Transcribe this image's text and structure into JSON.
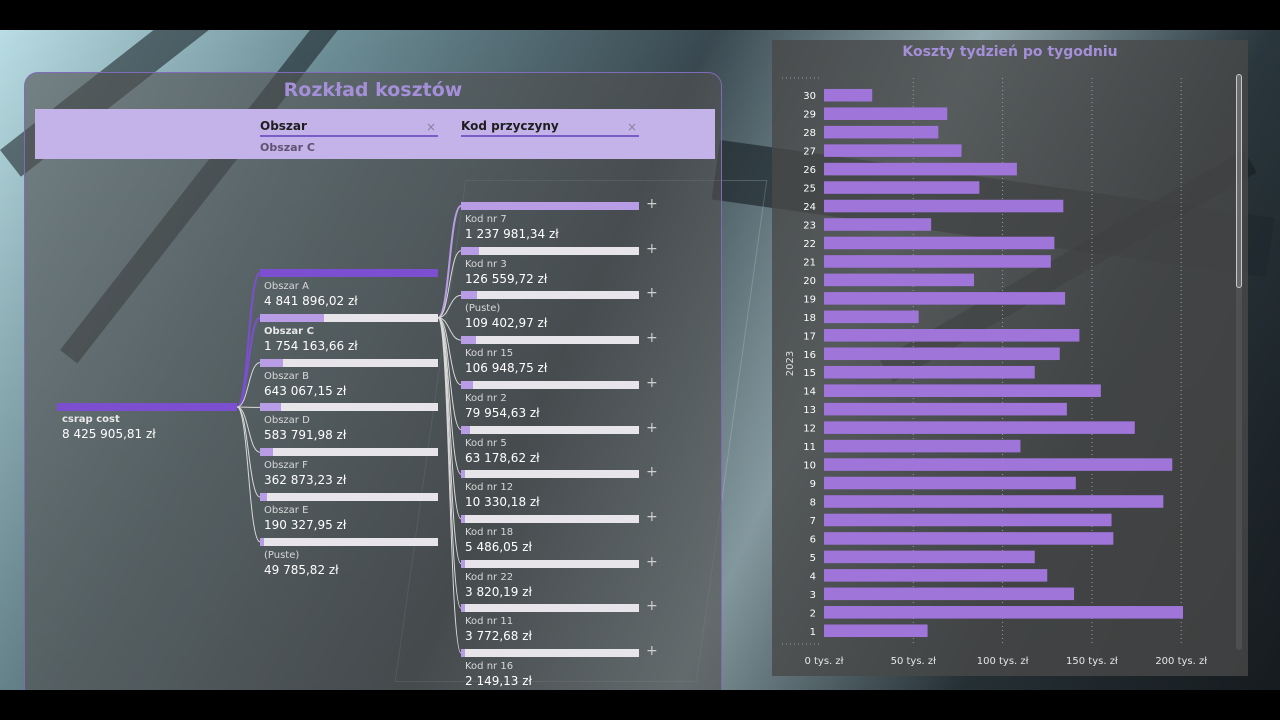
{
  "decomposition": {
    "title": "Rozkład kosztów",
    "filters": [
      {
        "label": "Obszar",
        "value": "Obszar C"
      },
      {
        "label": "Kod przyczyny",
        "value": ""
      }
    ],
    "root": {
      "label": "csrap cost",
      "value": "8 425 905,81 zł"
    },
    "level1": [
      {
        "label": "Obszar A",
        "value": "4 841 896,02 zł",
        "share": 1.0,
        "selected": false
      },
      {
        "label": "Obszar C",
        "value": "1 754 163,66 zł",
        "share": 0.36,
        "selected": true
      },
      {
        "label": "Obszar B",
        "value": "643 067,15 zł",
        "share": 0.13,
        "selected": false
      },
      {
        "label": "Obszar D",
        "value": "583 791,98 zł",
        "share": 0.12,
        "selected": false
      },
      {
        "label": "Obszar F",
        "value": "362 873,23 zł",
        "share": 0.075,
        "selected": false
      },
      {
        "label": "Obszar E",
        "value": "190 327,95 zł",
        "share": 0.04,
        "selected": false
      },
      {
        "label": "(Puste)",
        "value": "49 785,82 zł",
        "share": 0.01,
        "selected": false
      }
    ],
    "level2": [
      {
        "label": "Kod nr 7",
        "value": "1 237 981,34 zł",
        "share": 1.0
      },
      {
        "label": "Kod nr 3",
        "value": "126 559,72 zł",
        "share": 0.1
      },
      {
        "label": "(Puste)",
        "value": "109 402,97 zł",
        "share": 0.09
      },
      {
        "label": "Kod nr 15",
        "value": "106 948,75 zł",
        "share": 0.086
      },
      {
        "label": "Kod nr 2",
        "value": "79 954,63 zł",
        "share": 0.065
      },
      {
        "label": "Kod nr 5",
        "value": "63 178,62 zł",
        "share": 0.051
      },
      {
        "label": "Kod nr 12",
        "value": "10 330,18 zł",
        "share": 0.008
      },
      {
        "label": "Kod nr 18",
        "value": "5 486,05 zł",
        "share": 0.004
      },
      {
        "label": "Kod nr 22",
        "value": "3 820,19 zł",
        "share": 0.003
      },
      {
        "label": "Kod nr 11",
        "value": "3 772,68 zł",
        "share": 0.003
      },
      {
        "label": "Kod nr 16",
        "value": "2 149,13 zł",
        "share": 0.002
      }
    ],
    "expand_symbol": "+"
  },
  "weekly": {
    "axis_year": "2023"
  },
  "colors": {
    "bar": "#9f75da",
    "accent": "#7b4fd0",
    "title": "#a48fd8"
  },
  "chart_data": {
    "type": "bar",
    "orientation": "horizontal",
    "title": "Koszty tydzień po tygodniu",
    "ylabel": "2023",
    "xlabel": "",
    "xlim": [
      0,
      215
    ],
    "x_ticks": [
      "0 tys. zł",
      "50 tys. zł",
      "100 tys. zł",
      "150 tys. zł",
      "200 tys. zł"
    ],
    "categories": [
      "30",
      "29",
      "28",
      "27",
      "26",
      "25",
      "24",
      "23",
      "22",
      "21",
      "20",
      "19",
      "18",
      "17",
      "16",
      "15",
      "14",
      "13",
      "12",
      "11",
      "10",
      "9",
      "8",
      "7",
      "6",
      "5",
      "4",
      "3",
      "2",
      "1"
    ],
    "values": [
      27,
      69,
      64,
      77,
      108,
      87,
      134,
      60,
      129,
      127,
      84,
      135,
      53,
      143,
      132,
      118,
      155,
      136,
      174,
      110,
      195,
      141,
      190,
      161,
      162,
      118,
      125,
      140,
      201,
      58
    ],
    "unit": "tys. zł",
    "grid": true
  }
}
